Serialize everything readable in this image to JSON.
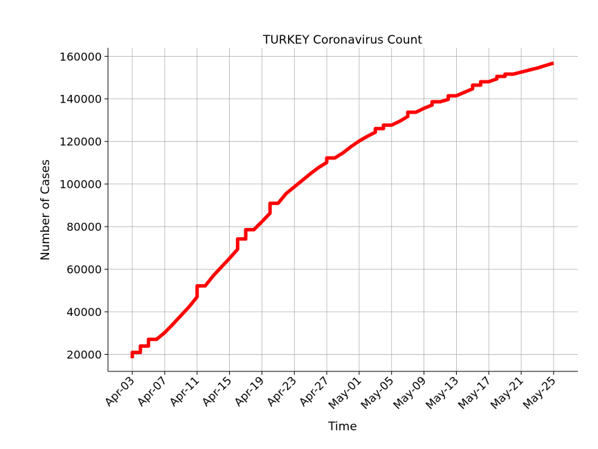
{
  "chart_data": {
    "type": "line",
    "title": "TURKEY Coronavirus Count",
    "xlabel": "Time",
    "ylabel": "Number of Cases",
    "x_ticks": [
      "Apr-03",
      "Apr-07",
      "Apr-11",
      "Apr-15",
      "Apr-19",
      "Apr-23",
      "Apr-27",
      "May-01",
      "May-05",
      "May-09",
      "May-13",
      "May-17",
      "May-21",
      "May-25"
    ],
    "y_ticks": [
      20000,
      40000,
      60000,
      80000,
      100000,
      120000,
      140000,
      160000
    ],
    "ylim": [
      12000,
      164000
    ],
    "xlim": [
      "2020-03-31",
      "2020-05-28"
    ],
    "grid": true,
    "series": [
      {
        "color": "#ff0000",
        "points": [
          [
            "2020-04-03",
            18135
          ],
          [
            "2020-04-03",
            20921
          ],
          [
            "2020-04-04",
            20921
          ],
          [
            "2020-04-04",
            23934
          ],
          [
            "2020-04-05",
            23934
          ],
          [
            "2020-04-05",
            27069
          ],
          [
            "2020-04-06",
            27069
          ],
          [
            "2020-04-07",
            30217
          ],
          [
            "2020-04-08",
            34109
          ],
          [
            "2020-04-09",
            38226
          ],
          [
            "2020-04-10",
            42282
          ],
          [
            "2020-04-11",
            47029
          ],
          [
            "2020-04-11",
            52167
          ],
          [
            "2020-04-12",
            52167
          ],
          [
            "2020-04-13",
            56956
          ],
          [
            "2020-04-14",
            61049
          ],
          [
            "2020-04-15",
            65111
          ],
          [
            "2020-04-16",
            69392
          ],
          [
            "2020-04-16",
            74193
          ],
          [
            "2020-04-17",
            74193
          ],
          [
            "2020-04-17",
            78546
          ],
          [
            "2020-04-18",
            78546
          ],
          [
            "2020-04-19",
            82329
          ],
          [
            "2020-04-20",
            86306
          ],
          [
            "2020-04-20",
            90980
          ],
          [
            "2020-04-21",
            90980
          ],
          [
            "2020-04-22",
            95591
          ],
          [
            "2020-04-23",
            98674
          ],
          [
            "2020-04-24",
            101790
          ],
          [
            "2020-04-25",
            104912
          ],
          [
            "2020-04-26",
            107773
          ],
          [
            "2020-04-27",
            110130
          ],
          [
            "2020-04-27",
            112261
          ],
          [
            "2020-04-28",
            112261
          ],
          [
            "2020-04-29",
            114653
          ],
          [
            "2020-04-30",
            117589
          ],
          [
            "2020-05-01",
            120204
          ],
          [
            "2020-05-02",
            122392
          ],
          [
            "2020-05-03",
            124375
          ],
          [
            "2020-05-03",
            126045
          ],
          [
            "2020-05-04",
            126045
          ],
          [
            "2020-05-04",
            127659
          ],
          [
            "2020-05-05",
            127659
          ],
          [
            "2020-05-06",
            129491
          ],
          [
            "2020-05-07",
            131744
          ],
          [
            "2020-05-07",
            133721
          ],
          [
            "2020-05-08",
            133721
          ],
          [
            "2020-05-09",
            135569
          ],
          [
            "2020-05-10",
            137115
          ],
          [
            "2020-05-10",
            138657
          ],
          [
            "2020-05-11",
            138657
          ],
          [
            "2020-05-12",
            139771
          ],
          [
            "2020-05-12",
            141475
          ],
          [
            "2020-05-13",
            141475
          ],
          [
            "2020-05-14",
            143114
          ],
          [
            "2020-05-15",
            144749
          ],
          [
            "2020-05-15",
            146457
          ],
          [
            "2020-05-16",
            146457
          ],
          [
            "2020-05-16",
            148067
          ],
          [
            "2020-05-17",
            148067
          ],
          [
            "2020-05-18",
            149435
          ],
          [
            "2020-05-18",
            150593
          ],
          [
            "2020-05-19",
            150593
          ],
          [
            "2020-05-19",
            151615
          ],
          [
            "2020-05-20",
            151615
          ],
          [
            "2020-05-21",
            152587
          ],
          [
            "2020-05-22",
            153548
          ],
          [
            "2020-05-23",
            154500
          ],
          [
            "2020-05-24",
            155686
          ],
          [
            "2020-05-25",
            156827
          ]
        ]
      }
    ]
  }
}
